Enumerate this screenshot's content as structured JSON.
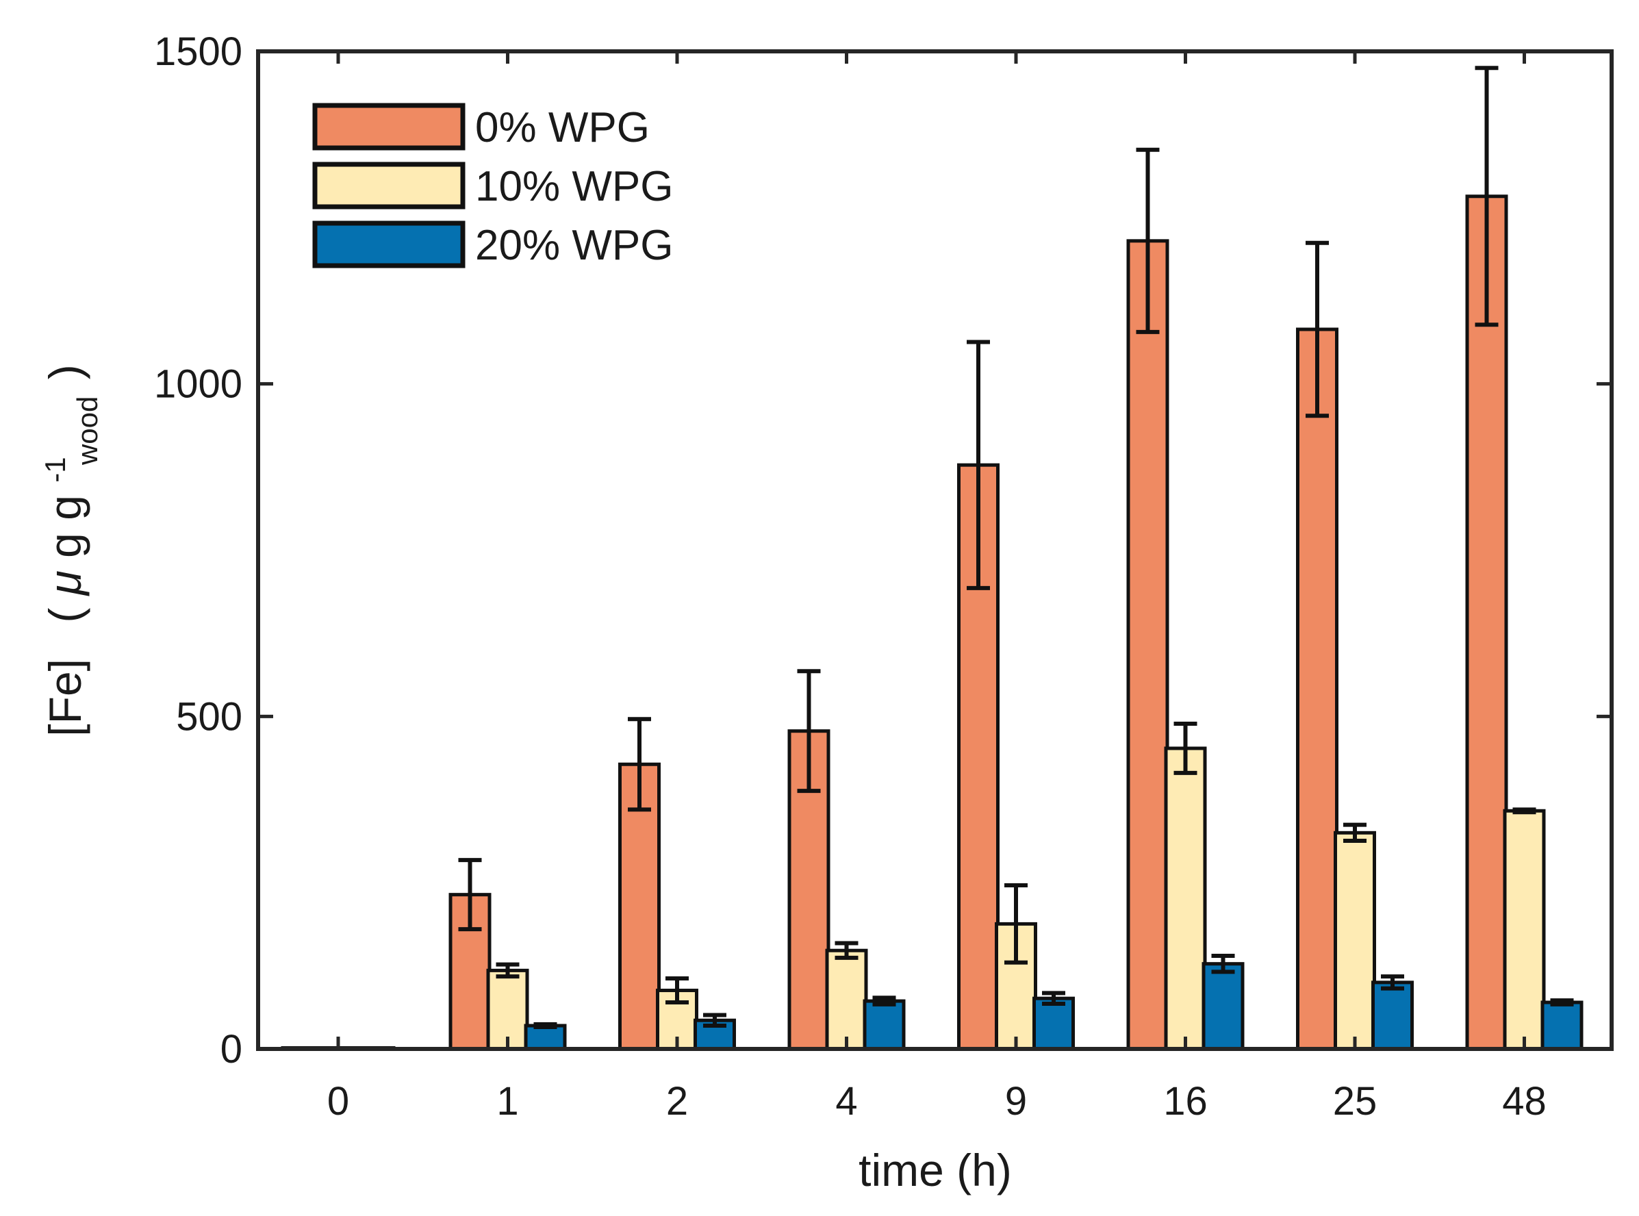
{
  "chart_data": {
    "type": "bar",
    "title": "",
    "xlabel": "time (h)",
    "ylabel": {
      "main": "[Fe]",
      "unit_open": "(",
      "mu": "μ",
      "g": "g g",
      "sup": "-1",
      "sub": "wood",
      "unit_close": ")"
    },
    "categories": [
      "0",
      "1",
      "2",
      "4",
      "9",
      "16",
      "25",
      "48"
    ],
    "ylim": [
      0,
      1500
    ],
    "yticks": [
      0,
      500,
      1000,
      1500
    ],
    "grid": false,
    "legend_position": "top-left",
    "series": [
      {
        "name": "0% WPG",
        "color": "#ef8a62",
        "values": [
          0,
          232,
          428,
          478,
          878,
          1215,
          1082,
          1282
        ],
        "errors": [
          0,
          52,
          68,
          90,
          185,
          137,
          130,
          193
        ]
      },
      {
        "name": "10% WPG",
        "color": "#feebb4",
        "values": [
          0,
          118,
          88,
          148,
          188,
          452,
          325,
          358
        ],
        "errors": [
          0,
          9,
          18,
          11,
          58,
          37,
          12,
          2
        ]
      },
      {
        "name": "20% WPG",
        "color": "#0571b0",
        "values": [
          0,
          35,
          43,
          72,
          76,
          128,
          100,
          70
        ],
        "errors": [
          0,
          2,
          8,
          5,
          8,
          12,
          9,
          3
        ]
      }
    ]
  }
}
